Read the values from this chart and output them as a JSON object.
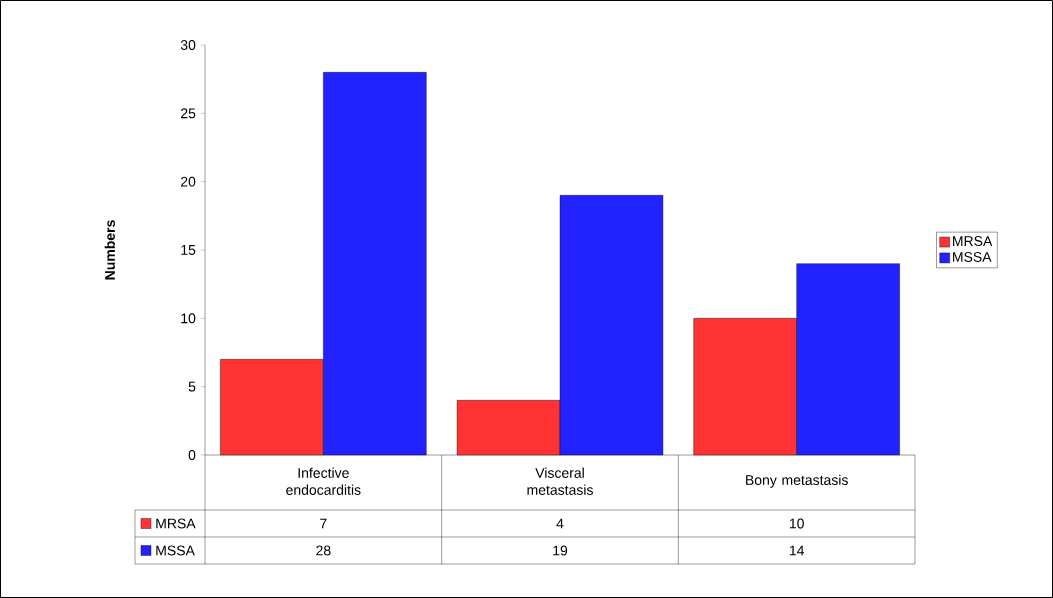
{
  "chart_data": {
    "type": "bar",
    "ylabel": "Numbers",
    "categories": [
      "Infective endocarditis",
      "Visceral metastasis",
      "Bony metastasis"
    ],
    "series": [
      {
        "name": "MRSA",
        "color": "#ff3333",
        "values": [
          7,
          4,
          10
        ],
        "value_labels": [
          "7",
          "4",
          "10"
        ]
      },
      {
        "name": "MSSA",
        "color": "#2222ff",
        "values": [
          28,
          19,
          14
        ],
        "value_labels": [
          "28",
          "19",
          "14"
        ]
      }
    ],
    "ylim": [
      0,
      30
    ],
    "yticks": [
      0,
      5,
      10,
      15,
      20,
      25,
      30
    ],
    "legend": "right"
  }
}
